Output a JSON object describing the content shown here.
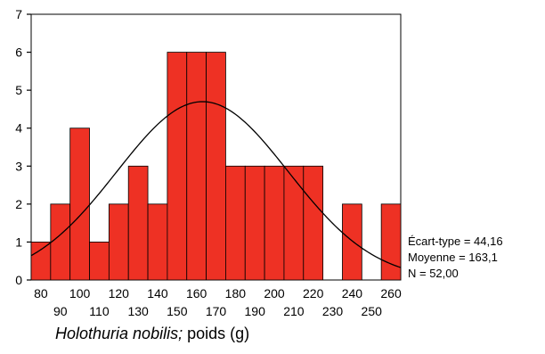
{
  "chart_data": {
    "type": "bar",
    "x_bin_centers": [
      80,
      90,
      100,
      110,
      120,
      130,
      140,
      150,
      160,
      170,
      180,
      190,
      200,
      210,
      220,
      230,
      240,
      250,
      260
    ],
    "bin_width": 10,
    "values": [
      1,
      2,
      4,
      1,
      2,
      3,
      2,
      6,
      6,
      6,
      3,
      3,
      3,
      3,
      3,
      0,
      2,
      0,
      2
    ],
    "x_tick_labels_top": [
      "80",
      "100",
      "120",
      "140",
      "160",
      "180",
      "200",
      "220",
      "240",
      "260"
    ],
    "x_tick_labels_bottom": [
      "90",
      "110",
      "130",
      "150",
      "170",
      "190",
      "210",
      "230",
      "250"
    ],
    "y_ticks": [
      "0",
      "1",
      "2",
      "3",
      "4",
      "5",
      "6",
      "7"
    ],
    "ylim": [
      0,
      7
    ],
    "xlim": [
      75,
      265
    ],
    "bar_color": "#ee3124",
    "curve": {
      "type": "normal",
      "mean": 163.1,
      "sd": 44.16,
      "n": 52
    },
    "stats": {
      "sd_label": "Écart-type = 44,16",
      "mean_label": "Moyenne = 163,1",
      "n_label": "N = 52,00"
    }
  },
  "caption": {
    "species": "Holothuria nobilis;",
    "measure": " poids (g)"
  }
}
